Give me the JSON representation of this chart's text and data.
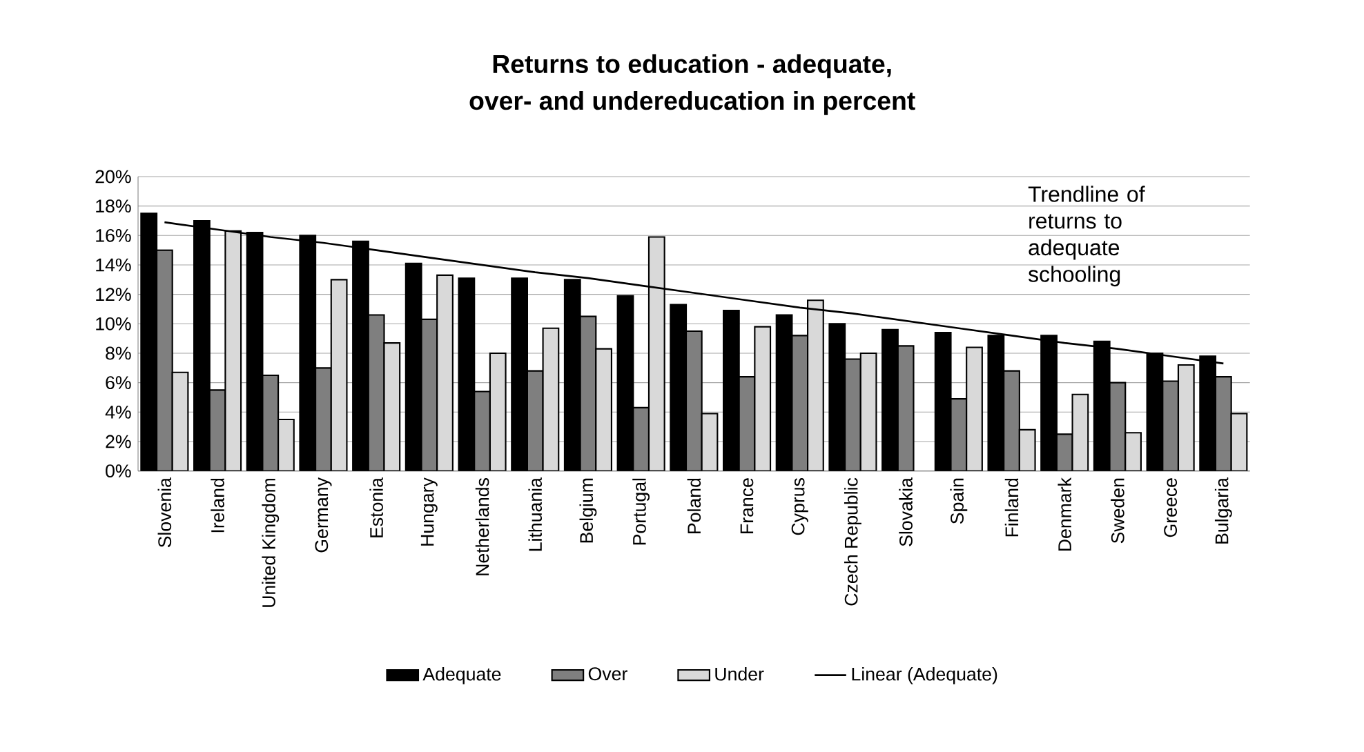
{
  "chart_data": {
    "type": "bar",
    "title": "Returns to education - adequate,",
    "subtitle": "over- and undereducation in percent",
    "categories": [
      "Slovenia",
      "Ireland",
      "United Kingdom",
      "Germany",
      "Estonia",
      "Hungary",
      "Netherlands",
      "Lithuania",
      "Belgium",
      "Portugal",
      "Poland",
      "France",
      "Cyprus",
      "Czech Republic",
      "Slovakia",
      "Spain",
      "Finland",
      "Denmark",
      "Sweden",
      "Greece",
      "Bulgaria"
    ],
    "series": [
      {
        "name": "Adequate",
        "color": "#000000",
        "values": [
          17.5,
          17.0,
          16.2,
          16.0,
          15.6,
          14.1,
          13.1,
          13.1,
          13.0,
          11.9,
          11.3,
          10.9,
          10.6,
          10.0,
          9.6,
          9.4,
          9.2,
          9.2,
          8.8,
          8.0,
          7.8
        ]
      },
      {
        "name": "Over",
        "color": "#7f7f7f",
        "values": [
          15.0,
          5.5,
          6.5,
          7.0,
          10.6,
          10.3,
          5.4,
          6.8,
          10.5,
          4.3,
          9.5,
          6.4,
          9.2,
          7.6,
          8.5,
          4.9,
          6.8,
          2.5,
          6.0,
          6.1,
          6.4
        ]
      },
      {
        "name": "Under",
        "color": "#d9d9d9",
        "values": [
          6.7,
          16.3,
          3.5,
          13.0,
          8.7,
          13.3,
          8.0,
          9.7,
          8.3,
          15.9,
          3.9,
          9.8,
          11.6,
          8.0,
          null,
          8.4,
          2.8,
          5.2,
          2.6,
          7.2,
          3.9
        ]
      },
      {
        "name": "Linear (Adequate)",
        "type": "line",
        "color": "#000000",
        "values": [
          16.9,
          16.4,
          15.9,
          15.5,
          15.0,
          14.5,
          14.0,
          13.5,
          13.1,
          12.6,
          12.1,
          11.6,
          11.1,
          10.7,
          10.2,
          9.7,
          9.2,
          8.7,
          8.3,
          7.8,
          7.3
        ]
      }
    ],
    "ylim": [
      0,
      20
    ],
    "yticks": [
      {
        "value": 0,
        "label": "0%"
      },
      {
        "value": 2,
        "label": "2%"
      },
      {
        "value": 4,
        "label": "4%"
      },
      {
        "value": 6,
        "label": "6%"
      },
      {
        "value": 8,
        "label": "8%"
      },
      {
        "value": 10,
        "label": "10%"
      },
      {
        "value": 12,
        "label": "12%"
      },
      {
        "value": 14,
        "label": "14%"
      },
      {
        "value": 16,
        "label": "16%"
      },
      {
        "value": 18,
        "label": "18%"
      },
      {
        "value": 20,
        "label": "20%"
      }
    ],
    "grid": "y",
    "legend": "bottom",
    "annotations": [
      "Trendline of returns to adequate schooling"
    ]
  }
}
